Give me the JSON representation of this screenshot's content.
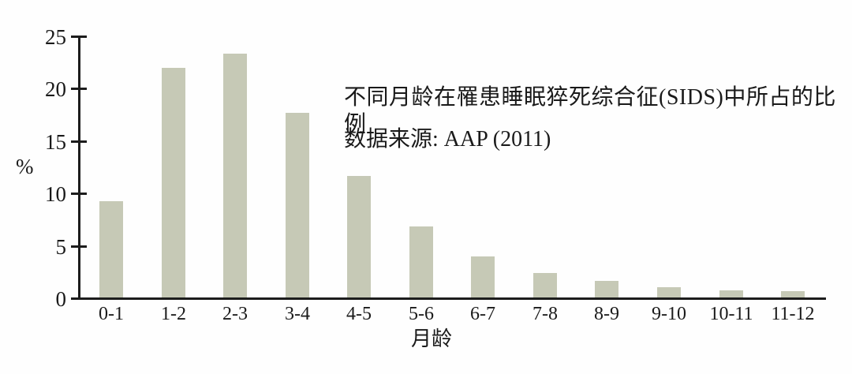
{
  "chart_data": {
    "type": "bar",
    "categories": [
      "0-1",
      "1-2",
      "2-3",
      "3-4",
      "4-5",
      "5-6",
      "6-7",
      "7-8",
      "8-9",
      "9-10",
      "10-11",
      "11-12"
    ],
    "values": [
      9.2,
      21.9,
      23.3,
      17.6,
      11.6,
      6.8,
      3.9,
      2.3,
      1.6,
      1.0,
      0.7,
      0.6
    ],
    "title": "不同月龄在罹患睡眠猝死综合征(SIDS)中所占的比例",
    "subtitle": "数据来源: AAP (2011)",
    "xlabel": "月龄",
    "ylabel": "%",
    "ylim": [
      0,
      25
    ],
    "yticks": [
      0,
      5,
      10,
      15,
      20,
      25
    ],
    "bar_color": "#c6c9b6",
    "axis_color": "#1c1c1c",
    "text_color": "#1a1a1a",
    "grid": false,
    "legend": "none"
  }
}
